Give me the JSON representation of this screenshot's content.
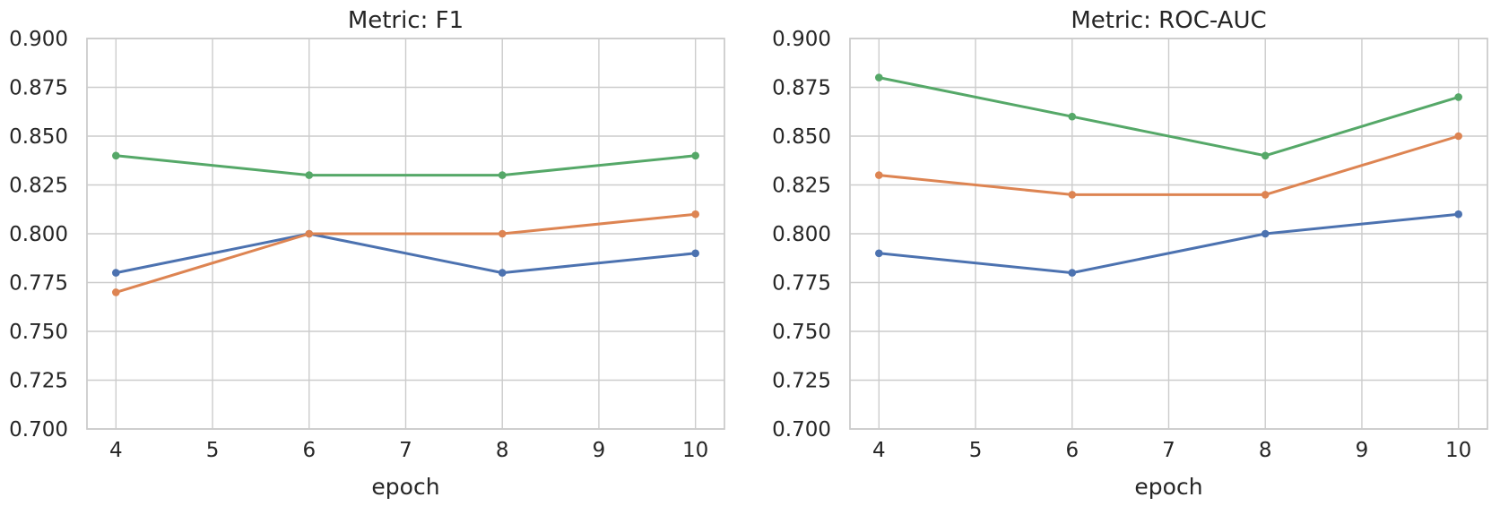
{
  "figure": {
    "background": "#ffffff",
    "text_color": "#262626",
    "grid_color": "#cccccc",
    "spine_color": "#cccccc"
  },
  "chart_data": [
    {
      "type": "line",
      "title": "Metric: F1",
      "xlabel": "epoch",
      "ylabel": "",
      "grid": true,
      "legend": "none",
      "x": [
        4,
        6,
        8,
        10
      ],
      "xlim": [
        3.7,
        10.3
      ],
      "ylim": [
        0.7,
        0.9
      ],
      "xticks": [
        4,
        5,
        6,
        7,
        8,
        9,
        10
      ],
      "xtick_labels": [
        "4",
        "5",
        "6",
        "7",
        "8",
        "9",
        "10"
      ],
      "yticks": [
        0.9,
        0.875,
        0.85,
        0.825,
        0.8,
        0.775,
        0.75,
        0.725,
        0.7
      ],
      "ytick_labels": [
        "0.900",
        "0.875",
        "0.850",
        "0.825",
        "0.800",
        "0.775",
        "0.750",
        "0.725",
        "0.700"
      ],
      "series": [
        {
          "name": "blue-series",
          "color": "#4C72B0",
          "marker": "circle",
          "values": [
            0.78,
            0.8,
            0.78,
            0.79
          ]
        },
        {
          "name": "orange-series",
          "color": "#DD8452",
          "marker": "circle",
          "values": [
            0.77,
            0.8,
            0.8,
            0.81
          ]
        },
        {
          "name": "green-series",
          "color": "#55A868",
          "marker": "circle",
          "values": [
            0.84,
            0.83,
            0.83,
            0.84
          ]
        }
      ]
    },
    {
      "type": "line",
      "title": "Metric: ROC-AUC",
      "xlabel": "epoch",
      "ylabel": "",
      "grid": true,
      "legend": "none",
      "x": [
        4,
        6,
        8,
        10
      ],
      "xlim": [
        3.7,
        10.3
      ],
      "ylim": [
        0.7,
        0.9
      ],
      "xticks": [
        4,
        5,
        6,
        7,
        8,
        9,
        10
      ],
      "xtick_labels": [
        "4",
        "5",
        "6",
        "7",
        "8",
        "9",
        "10"
      ],
      "yticks": [
        0.9,
        0.875,
        0.85,
        0.825,
        0.8,
        0.775,
        0.75,
        0.725,
        0.7
      ],
      "ytick_labels": [
        "0.900",
        "0.875",
        "0.850",
        "0.825",
        "0.800",
        "0.775",
        "0.750",
        "0.725",
        "0.700"
      ],
      "series": [
        {
          "name": "blue-series",
          "color": "#4C72B0",
          "marker": "circle",
          "values": [
            0.79,
            0.78,
            0.8,
            0.81
          ]
        },
        {
          "name": "orange-series",
          "color": "#DD8452",
          "marker": "circle",
          "values": [
            0.83,
            0.82,
            0.82,
            0.85
          ]
        },
        {
          "name": "green-series",
          "color": "#55A868",
          "marker": "circle",
          "values": [
            0.88,
            0.86,
            0.84,
            0.87
          ]
        }
      ]
    }
  ]
}
